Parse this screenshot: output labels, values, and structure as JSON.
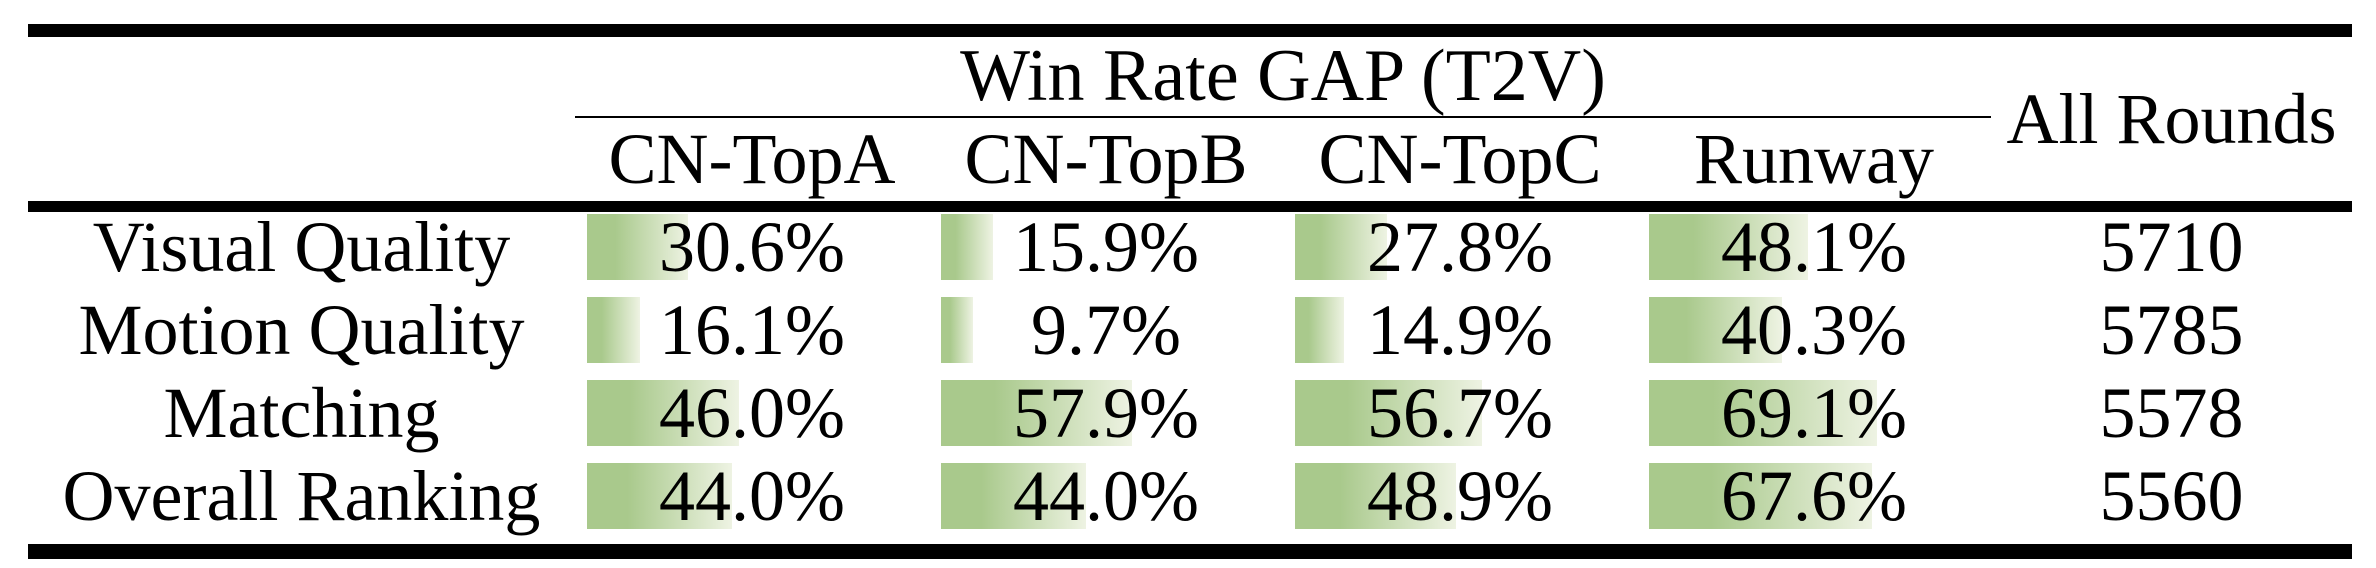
{
  "table": {
    "group_header": "Win Rate GAP (T2V)",
    "all_rounds_header": "All Rounds",
    "model_columns": [
      "CN-TopA",
      "CN-TopB",
      "CN-TopC",
      "Runway"
    ],
    "rows": [
      {
        "label": "Visual Quality",
        "cells": [
          {
            "text": "30.6%",
            "value": 30.6
          },
          {
            "text": "15.9%",
            "value": 15.9
          },
          {
            "text": "27.8%",
            "value": 27.8
          },
          {
            "text": "48.1%",
            "value": 48.1
          }
        ],
        "all_rounds": "5710"
      },
      {
        "label": "Motion Quality",
        "cells": [
          {
            "text": "16.1%",
            "value": 16.1
          },
          {
            "text": "9.7%",
            "value": 9.7
          },
          {
            "text": "14.9%",
            "value": 14.9
          },
          {
            "text": "40.3%",
            "value": 40.3
          }
        ],
        "all_rounds": "5785"
      },
      {
        "label": "Matching",
        "cells": [
          {
            "text": "46.0%",
            "value": 46.0
          },
          {
            "text": "57.9%",
            "value": 57.9
          },
          {
            "text": "56.7%",
            "value": 56.7
          },
          {
            "text": "69.1%",
            "value": 69.1
          }
        ],
        "all_rounds": "5578"
      },
      {
        "label": "Overall Ranking",
        "cells": [
          {
            "text": "44.0%",
            "value": 44.0
          },
          {
            "text": "44.0%",
            "value": 44.0
          },
          {
            "text": "48.9%",
            "value": 48.9
          },
          {
            "text": "67.6%",
            "value": 67.6
          }
        ],
        "all_rounds": "5560"
      }
    ]
  },
  "colors": {
    "bar_green": "#a9c98c",
    "bar_fade": "#eef3e3",
    "rule_black": "#000000"
  },
  "chart_data": {
    "type": "table",
    "title": "Win Rate GAP (T2V)",
    "categories": [
      "Visual Quality",
      "Motion Quality",
      "Matching",
      "Overall Ranking"
    ],
    "series": [
      {
        "name": "CN-TopA",
        "values": [
          30.6,
          16.1,
          46.0,
          44.0
        ]
      },
      {
        "name": "CN-TopB",
        "values": [
          15.9,
          9.7,
          57.9,
          44.0
        ]
      },
      {
        "name": "CN-TopC",
        "values": [
          27.8,
          14.9,
          56.7,
          48.9
        ]
      },
      {
        "name": "Runway",
        "values": [
          48.1,
          40.3,
          69.1,
          67.6
        ]
      }
    ],
    "all_rounds": [
      5710,
      5785,
      5578,
      5560
    ],
    "unit": "%",
    "bar_scale_max": 100
  }
}
